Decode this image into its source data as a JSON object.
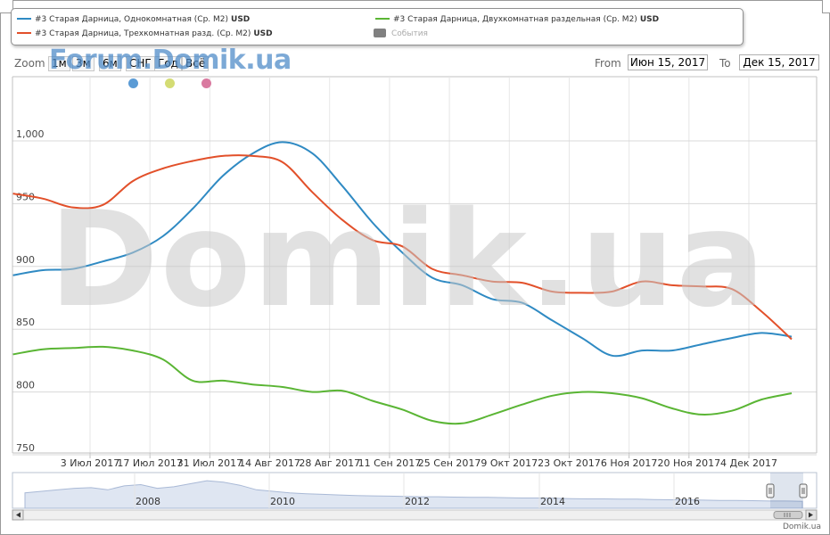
{
  "legend": {
    "items": [
      {
        "label": "#3 Старая Дарница, Однокомнатная (Ср. М2)",
        "unit": "USD",
        "color": "#2f8ac3"
      },
      {
        "label": "#3 Старая Дарница, Трехкомнатная разд. (Ср. М2)",
        "unit": "USD",
        "color": "#e2502a"
      },
      {
        "label": "#3 Старая Дарница, Двухкомнатная раздельная (Ср. М2)",
        "unit": "USD",
        "color": "#5ab534"
      },
      {
        "label": "События",
        "unit": "",
        "color": "#808080"
      }
    ]
  },
  "watermark_top": "Forum.Domik.ua",
  "watermark_center": "Domik.ua",
  "credit": "Domik.ua",
  "range_selector": {
    "zoom_label": "Zoom",
    "buttons": [
      "1м",
      "3м",
      "6м",
      "СНГ",
      "Год",
      "Всё"
    ],
    "from_label": "From",
    "from_value": "Июн 15, 2017",
    "to_label": "To",
    "to_value": "Дек 15, 2017"
  },
  "event_markers": [
    {
      "color": "#5b9bd5"
    },
    {
      "color": "#d4dc74"
    },
    {
      "color": "#d97aa0"
    }
  ],
  "chart_data": {
    "type": "line",
    "y_ticks": [
      "1,000",
      "950",
      "900",
      "850",
      "800",
      "750"
    ],
    "ylim": [
      740,
      1050
    ],
    "x_ticks": [
      "3 Июл 2017",
      "17 Июл 2017",
      "31 Июл 2017",
      "14 Авг 2017",
      "28 Авг 2017",
      "11 Сен 2017",
      "25 Сен 2017",
      "9 Окт 2017",
      "23 Окт 2017",
      "6 Ноя 2017",
      "20 Ноя 2017",
      "4 Дек 2017"
    ],
    "x": [
      "2017-06-15",
      "2017-06-22",
      "2017-06-29",
      "2017-07-06",
      "2017-07-13",
      "2017-07-20",
      "2017-07-27",
      "2017-08-03",
      "2017-08-10",
      "2017-08-17",
      "2017-08-24",
      "2017-08-31",
      "2017-09-07",
      "2017-09-14",
      "2017-09-21",
      "2017-09-28",
      "2017-10-05",
      "2017-10-12",
      "2017-10-19",
      "2017-10-26",
      "2017-11-02",
      "2017-11-09",
      "2017-11-16",
      "2017-11-23",
      "2017-11-30",
      "2017-12-07",
      "2017-12-14"
    ],
    "series": [
      {
        "name": "#3 Старая Дарница, Однокомнатная (Ср. М2)",
        "color": "#2f8ac3",
        "values": [
          893,
          897,
          898,
          904,
          911,
          924,
          946,
          972,
          990,
          999,
          990,
          964,
          935,
          911,
          891,
          885,
          874,
          871,
          857,
          843,
          829,
          833,
          833,
          838,
          843,
          847,
          844
        ]
      },
      {
        "name": "#3 Старая Дарница, Трехкомнатная разд. (Ср. М2)",
        "color": "#e2502a",
        "values": [
          958,
          954,
          947,
          949,
          968,
          978,
          984,
          988,
          988,
          983,
          959,
          937,
          921,
          916,
          898,
          893,
          888,
          887,
          880,
          879,
          880,
          888,
          885,
          884,
          882,
          864,
          842
        ]
      },
      {
        "name": "#3 Старая Дарница, Двухкомнатная раздельная (Ср. М2)",
        "color": "#5ab534",
        "values": [
          830,
          834,
          835,
          836,
          833,
          826,
          809,
          809,
          806,
          804,
          800,
          801,
          793,
          786,
          777,
          775,
          782,
          790,
          797,
          800,
          799,
          795,
          787,
          782,
          785,
          794,
          799
        ]
      }
    ]
  },
  "navigator": {
    "labels": [
      "2008",
      "2010",
      "2012",
      "2014",
      "2016"
    ]
  }
}
